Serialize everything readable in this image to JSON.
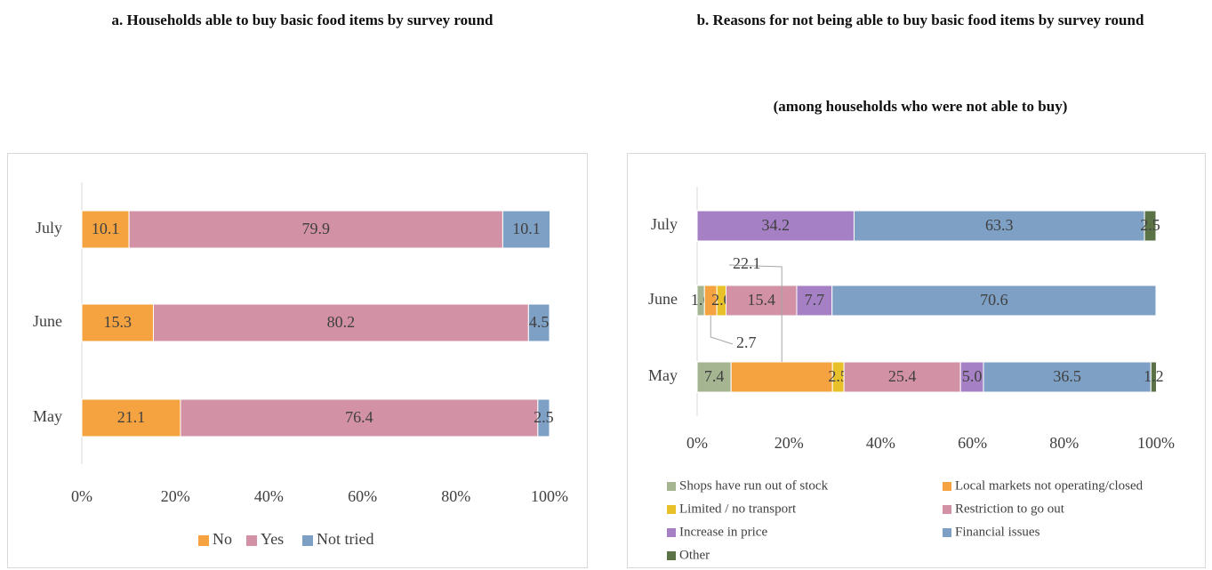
{
  "chart_data": [
    {
      "type": "stacked-bar-horizontal",
      "title": "a. Households able to buy basic food items by survey round",
      "categories": [
        "July",
        "June",
        "May"
      ],
      "series": [
        {
          "name": "No",
          "color": "#f4a340",
          "values": [
            10.1,
            15.3,
            21.1
          ],
          "value_labels": [
            "10.1",
            "15.3",
            "21.1"
          ]
        },
        {
          "name": "Yes",
          "color": "#d291a4",
          "values": [
            79.9,
            80.2,
            76.4
          ],
          "value_labels": [
            "79.9",
            "80.2",
            "76.4"
          ]
        },
        {
          "name": "Not tried",
          "color": "#7ea0c4",
          "values": [
            10.1,
            4.5,
            2.5
          ],
          "value_labels": [
            "10.1",
            "4.5",
            "2.5"
          ]
        }
      ],
      "xlim": [
        0,
        100
      ],
      "xticks": [
        {
          "value": 0,
          "label": "0%"
        },
        {
          "value": 20,
          "label": "20%"
        },
        {
          "value": 40,
          "label": "40%"
        },
        {
          "value": 60,
          "label": "60%"
        },
        {
          "value": 80,
          "label": "80%"
        },
        {
          "value": 100,
          "label": "100%"
        }
      ],
      "legend": "bottom"
    },
    {
      "type": "stacked-bar-horizontal",
      "title": "b. Reasons for not being able to buy basic food items by survey round",
      "subtitle": "(among households who were not able to buy)",
      "categories": [
        "July",
        "June",
        "May"
      ],
      "series": [
        {
          "name": "Shops have run out of stock",
          "color": "#a5b592",
          "values": [
            null,
            1.6,
            7.4
          ],
          "value_labels": [
            null,
            "1.6",
            "7.4"
          ]
        },
        {
          "name": "Local markets not operating/closed",
          "color": "#f4a340",
          "values": [
            null,
            2.7,
            22.1
          ],
          "value_labels": [
            null,
            "2.7",
            "22.1"
          ]
        },
        {
          "name": "Limited / no transport",
          "color": "#e8c12a",
          "values": [
            null,
            2.0,
            2.5
          ],
          "value_labels": [
            null,
            "2.0",
            "2.5"
          ]
        },
        {
          "name": "Restriction to go out",
          "color": "#d291a4",
          "values": [
            null,
            15.4,
            25.4
          ],
          "value_labels": [
            null,
            "15.4",
            "25.4"
          ]
        },
        {
          "name": "Increase in price",
          "color": "#a580c4",
          "values": [
            34.2,
            7.7,
            5.0
          ],
          "value_labels": [
            "34.2",
            "7.7",
            "5.0"
          ]
        },
        {
          "name": "Financial issues",
          "color": "#7ea0c4",
          "values": [
            63.3,
            70.6,
            36.5
          ],
          "value_labels": [
            "63.3",
            "70.6",
            "36.5"
          ]
        },
        {
          "name": "Other",
          "color": "#5a7245",
          "values": [
            2.5,
            null,
            1.2
          ],
          "value_labels": [
            "2.5",
            null,
            "1.2"
          ]
        }
      ],
      "xlim": [
        0,
        100
      ],
      "xticks": [
        {
          "value": 0,
          "label": "0%"
        },
        {
          "value": 20,
          "label": "20%"
        },
        {
          "value": 40,
          "label": "40%"
        },
        {
          "value": 60,
          "label": "60%"
        },
        {
          "value": 80,
          "label": "80%"
        },
        {
          "value": 100,
          "label": "100%"
        }
      ],
      "legend": "bottom"
    }
  ]
}
